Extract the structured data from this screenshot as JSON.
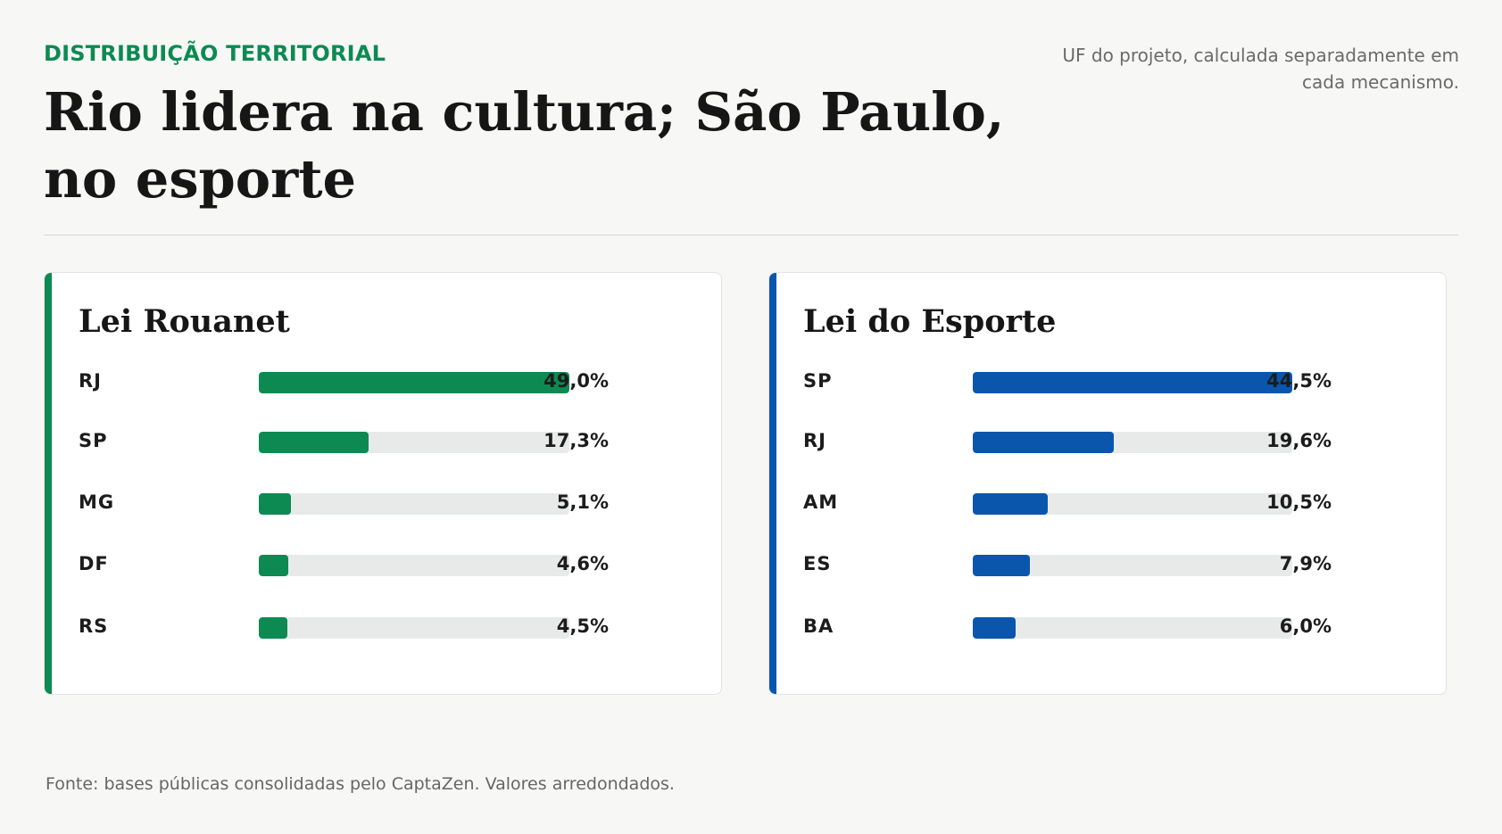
{
  "header": {
    "kicker": "DISTRIBUIÇÃO TERRITORIAL",
    "title": "Rio lidera na cultura; São Paulo, no esporte",
    "note": "UF do projeto, calculada separadamente em cada mecanismo."
  },
  "chart_data": [
    {
      "type": "bar",
      "orientation": "horizontal",
      "title": "Lei Rouanet",
      "color": "#0c8a52",
      "categories": [
        "RJ",
        "SP",
        "MG",
        "DF",
        "RS"
      ],
      "values": [
        49.0,
        17.3,
        5.1,
        4.6,
        4.5
      ],
      "value_labels": [
        "49,0%",
        "17,3%",
        "5,1%",
        "4,6%",
        "4,5%"
      ],
      "unit": "%"
    },
    {
      "type": "bar",
      "orientation": "horizontal",
      "title": "Lei do Esporte",
      "color": "#0b56ad",
      "categories": [
        "SP",
        "RJ",
        "AM",
        "ES",
        "BA"
      ],
      "values": [
        44.5,
        19.6,
        10.5,
        7.9,
        6.0
      ],
      "value_labels": [
        "44,5%",
        "19,6%",
        "10,5%",
        "7,9%",
        "6,0%"
      ],
      "unit": "%"
    }
  ],
  "footer": {
    "source": "Fonte: bases públicas consolidadas pelo CaptaZen. Valores arredondados."
  }
}
